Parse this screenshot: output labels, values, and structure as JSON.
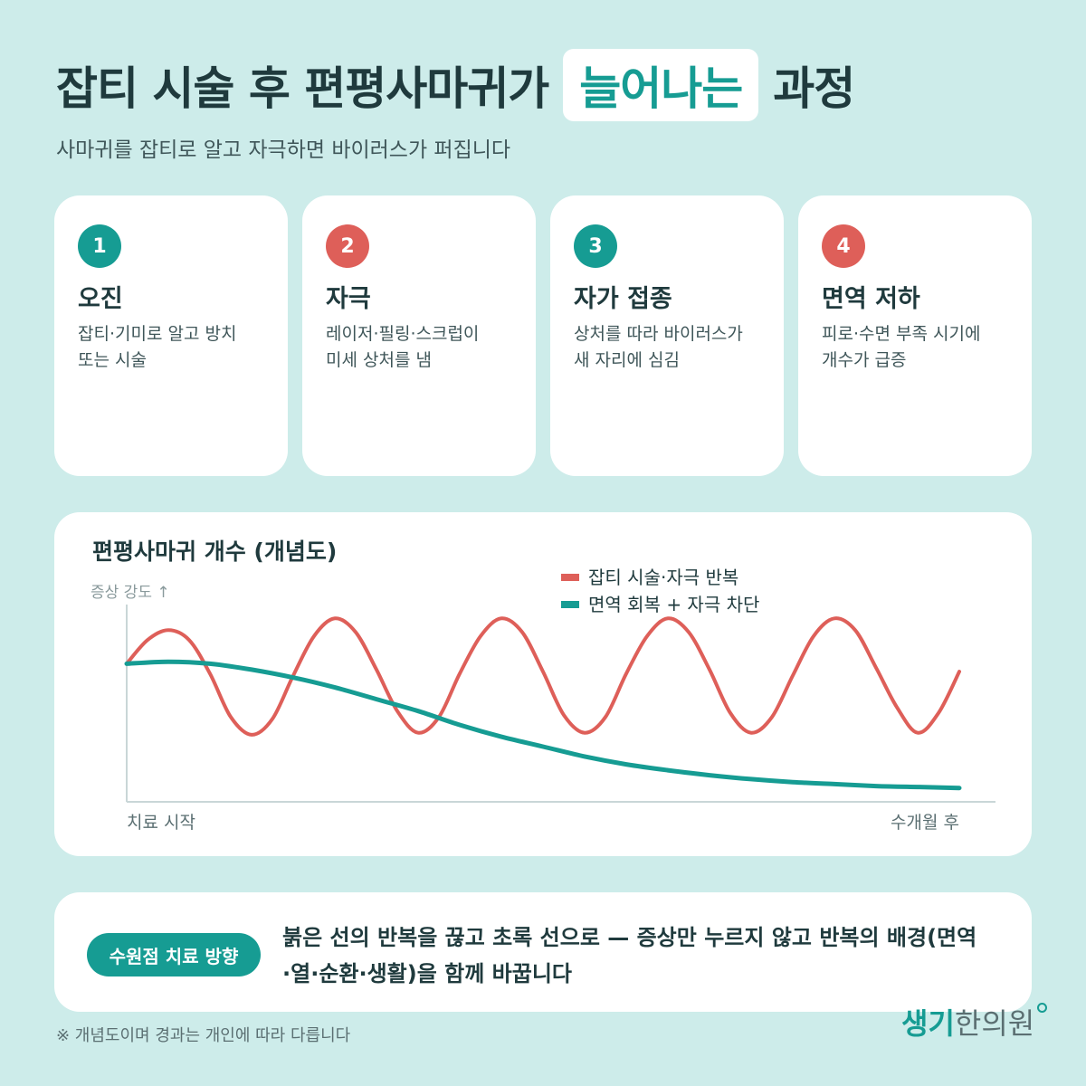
{
  "header": {
    "title_before": "잡티 시술 후 편평사마귀가",
    "title_highlight": "늘어나는",
    "title_after": "과정",
    "subtitle": "사마귀를 잡티로 알고 자극하면 바이러스가 퍼집니다"
  },
  "steps": [
    {
      "number": "1",
      "title": "오진",
      "desc": [
        "잡티·기미로 알고 방치",
        "또는 시술"
      ],
      "badge_color": "#169c93"
    },
    {
      "number": "2",
      "title": "자극",
      "desc": [
        "레이저·필링·스크럽이",
        "미세 상처를 냄"
      ],
      "badge_color": "#de5f59"
    },
    {
      "number": "3",
      "title": "자가 접종",
      "desc": [
        "상처를 따라 바이러스가",
        "새 자리에 심김"
      ],
      "badge_color": "#169c93"
    },
    {
      "number": "4",
      "title": "면역 저하",
      "desc": [
        "피로·수면 부족 시기에",
        "개수가 급증"
      ],
      "badge_color": "#de5f59"
    }
  ],
  "chart_data": {
    "type": "line",
    "title": "편평사마귀 개수 (개념도)",
    "ylabel": "증상 강도 ↑",
    "x_start_label": "치료 시작",
    "x_end_label": "수개월 후",
    "xlim": [
      0,
      1
    ],
    "ylim": [
      0,
      1
    ],
    "grid": false,
    "legend_position": "top",
    "series": [
      {
        "name": "잡티 시술·자극 반복",
        "color": "#de5f59",
        "x": [
          0,
          0.025,
          0.05,
          0.075,
          0.1,
          0.125,
          0.15,
          0.175,
          0.2,
          0.225,
          0.25,
          0.275,
          0.3,
          0.325,
          0.35,
          0.375,
          0.4,
          0.425,
          0.45,
          0.475,
          0.5,
          0.525,
          0.55,
          0.575,
          0.6,
          0.625,
          0.65,
          0.675,
          0.7,
          0.725,
          0.75,
          0.775,
          0.8,
          0.825,
          0.85,
          0.875,
          0.9,
          0.925,
          0.95,
          0.975,
          1.0
        ],
        "y": [
          0.7,
          0.82,
          0.87,
          0.82,
          0.65,
          0.43,
          0.34,
          0.42,
          0.64,
          0.84,
          0.93,
          0.86,
          0.67,
          0.46,
          0.35,
          0.43,
          0.65,
          0.84,
          0.93,
          0.86,
          0.66,
          0.44,
          0.35,
          0.43,
          0.65,
          0.84,
          0.93,
          0.86,
          0.67,
          0.45,
          0.35,
          0.43,
          0.64,
          0.84,
          0.93,
          0.87,
          0.68,
          0.48,
          0.35,
          0.45,
          0.66
        ]
      },
      {
        "name": "면역 회복 + 자극 차단",
        "color": "#169c93",
        "x": [
          0,
          0.05,
          0.1,
          0.15,
          0.2,
          0.25,
          0.3,
          0.35,
          0.4,
          0.45,
          0.5,
          0.55,
          0.6,
          0.65,
          0.7,
          0.75,
          0.8,
          0.85,
          0.9,
          0.95,
          1.0
        ],
        "y": [
          0.7,
          0.71,
          0.7,
          0.67,
          0.63,
          0.58,
          0.52,
          0.46,
          0.39,
          0.33,
          0.28,
          0.23,
          0.19,
          0.16,
          0.135,
          0.115,
          0.1,
          0.09,
          0.08,
          0.075,
          0.07
        ]
      }
    ]
  },
  "callout": {
    "pill_label": "수원점 치료 방향",
    "message_lines": [
      "붉은 선의 반복을 끊고 초록 선으로 — 증상만 누르지 않고 반복의 배경(면역",
      "·열·순환·생활)을 함께 바꿉니다"
    ]
  },
  "footnote": "※ 개념도이며 경과는 개인에 따라 다릅니다",
  "brand": {
    "part1": "생기",
    "part2": "한의원"
  }
}
